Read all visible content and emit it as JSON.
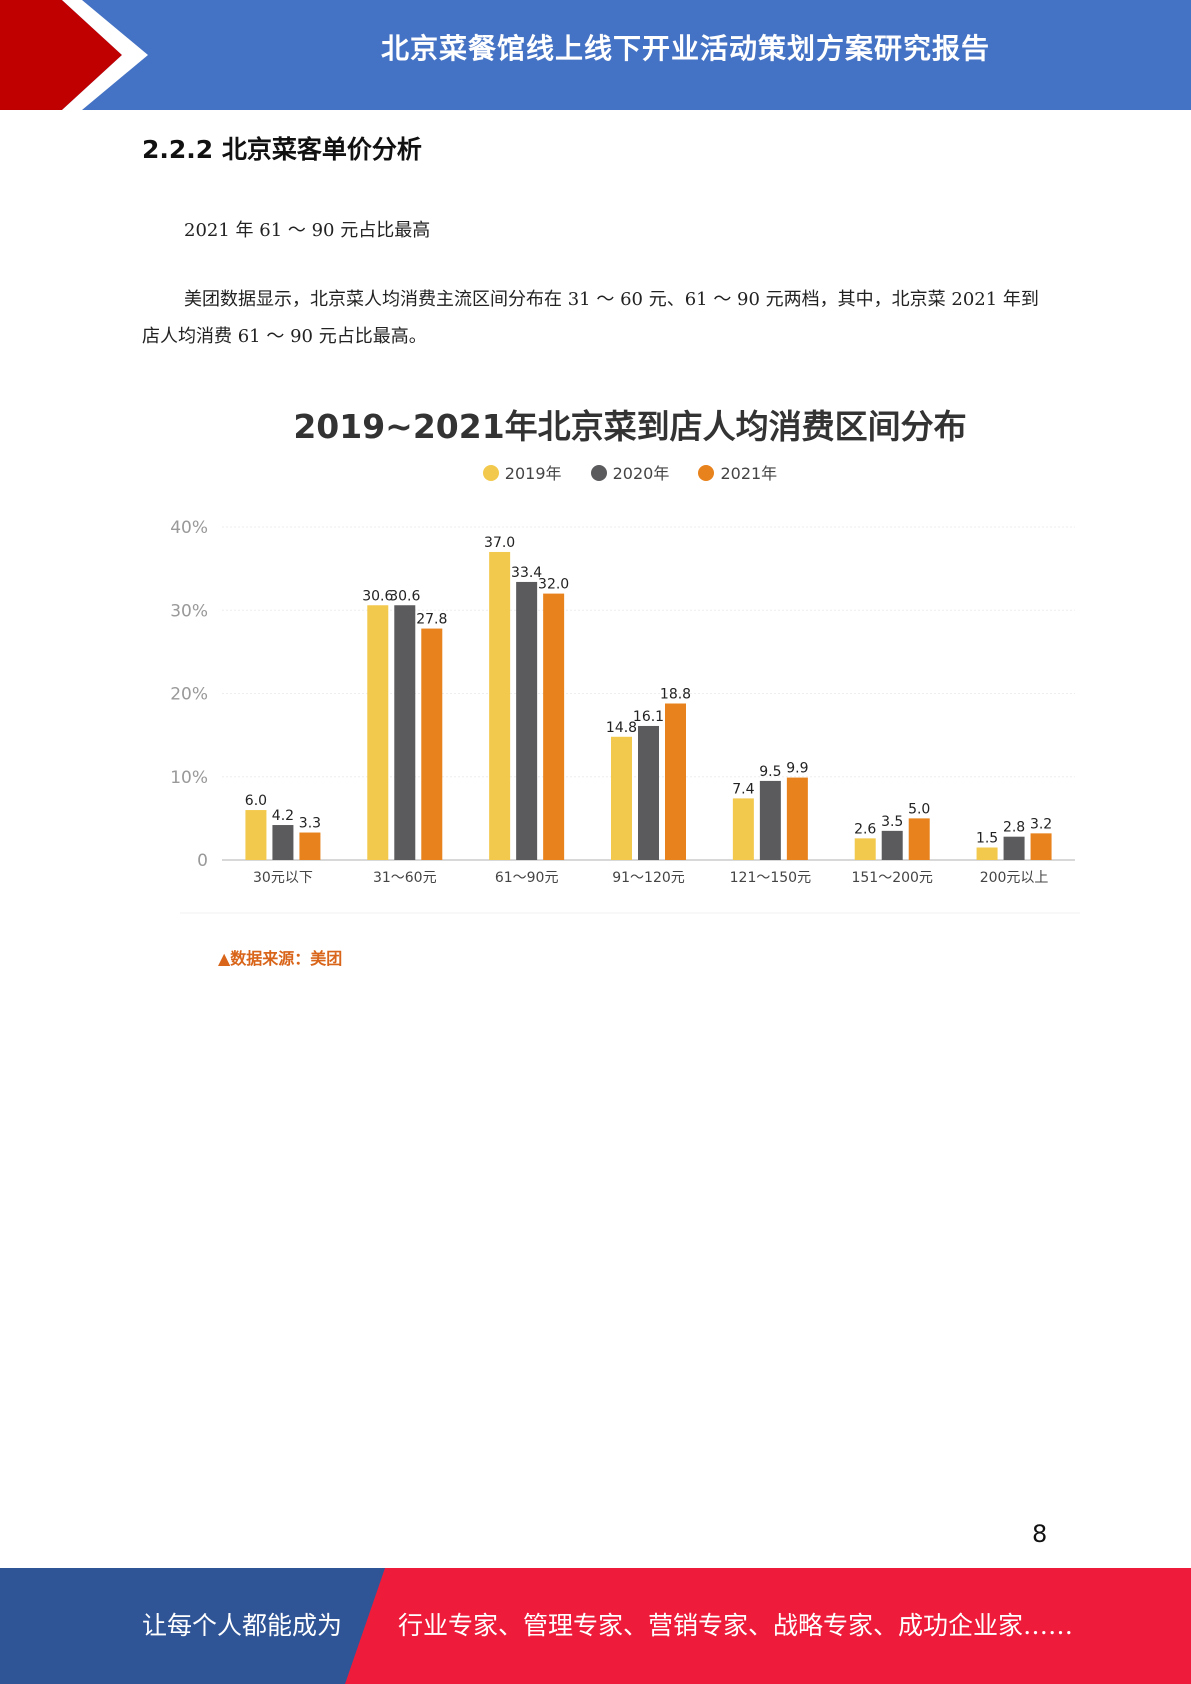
{
  "header": {
    "title": "北京菜餐馆线上线下开业活动策划方案研究报告"
  },
  "section": {
    "heading": "2.2.2 北京菜客单价分析"
  },
  "paragraphs": {
    "p1": "2021 年 61 ～ 90 元占比最高",
    "p2": "美团数据显示，北京菜人均消费主流区间分布在 31 ～ 60 元、61 ～ 90 元两档，其中，北京菜 2021 年到店人均消费 61 ～ 90 元占比最高。"
  },
  "chart_data": {
    "type": "bar",
    "title": "2019~2021年北京菜到店人均消费区间分布",
    "categories": [
      "30元以下",
      "31～60元",
      "61～90元",
      "91～120元",
      "121～150元",
      "151～200元",
      "200元以上"
    ],
    "series": [
      {
        "name": "2019年",
        "color": "#f2c94c",
        "values": [
          6.0,
          30.6,
          37.0,
          14.8,
          7.4,
          2.6,
          1.5
        ]
      },
      {
        "name": "2020年",
        "color": "#5b5b5e",
        "values": [
          4.2,
          30.6,
          33.4,
          16.1,
          9.5,
          3.5,
          2.8
        ]
      },
      {
        "name": "2021年",
        "color": "#e8821c",
        "values": [
          3.3,
          27.8,
          32.0,
          18.8,
          9.9,
          5.0,
          3.2
        ]
      }
    ],
    "y_ticks": [
      "0",
      "10%",
      "20%",
      "30%",
      "40%"
    ],
    "ylim": [
      0,
      40
    ],
    "legend_position": "top-center",
    "grid": true,
    "source": "▲数据来源：美团"
  },
  "page_number": "8",
  "footer": {
    "left_text": "让每个人都能成为",
    "right_text": "行业专家、管理专家、营销专家、战略专家、成功企业家……"
  },
  "colors": {
    "header_blue": "#4472c4",
    "header_red": "#c00000",
    "footer_blue": "#2f5597",
    "footer_red": "#ee1c3a"
  }
}
